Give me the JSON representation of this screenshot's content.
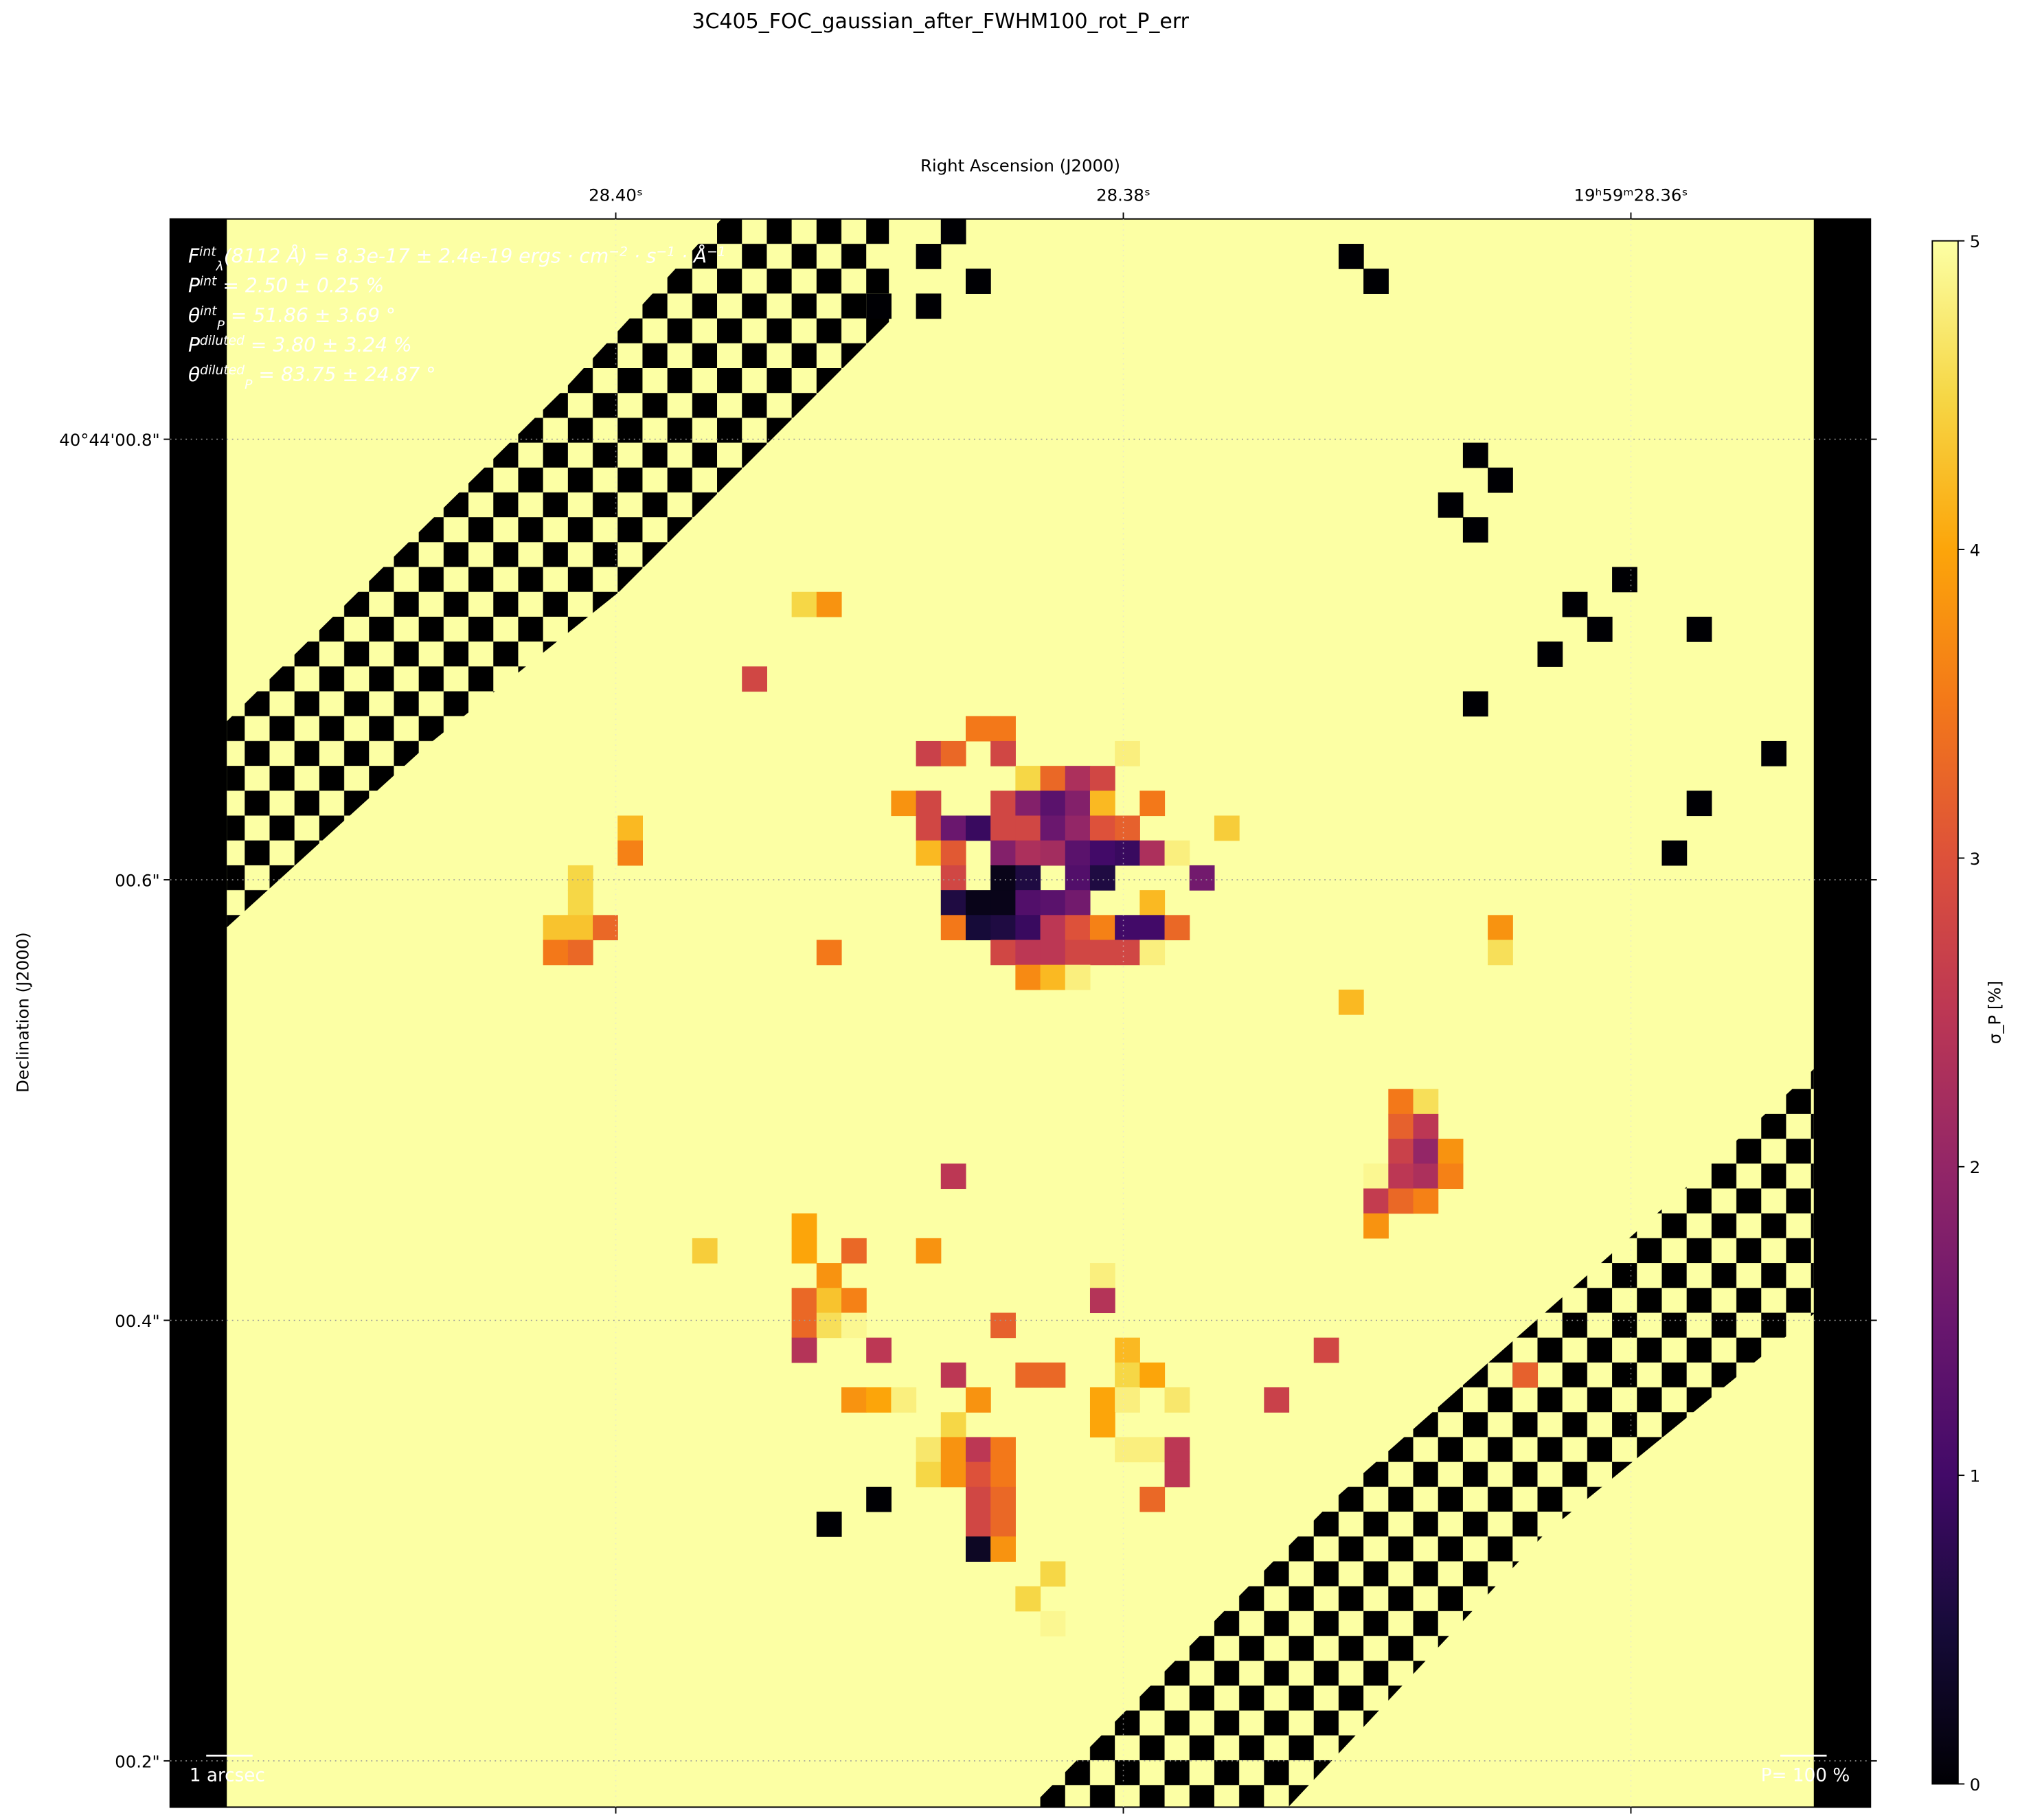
{
  "chart_data": {
    "type": "heatmap",
    "title": "3C405_FOC_gaussian_after_FWHM100_rot_P_err",
    "x_label": "Right Ascension (J2000)",
    "y_label": "Declination (J2000)",
    "xlim": [
      28.41756,
      28.35056
    ],
    "xticks": [
      {
        "value": 28.4,
        "label": "28.40ˢ"
      },
      {
        "value": 28.38,
        "label": "28.38ˢ"
      },
      {
        "value": 28.36,
        "label": "19ʰ59ᵐ28.36ˢ"
      }
    ],
    "ylim": [
      0.179,
      0.9
    ],
    "yticks": [
      {
        "value": 0.8,
        "label": "40°44'00.8\""
      },
      {
        "value": 0.6,
        "label": "00.6\""
      },
      {
        "value": 0.4,
        "label": "00.4\""
      },
      {
        "value": 0.2,
        "label": "00.2\""
      }
    ],
    "grid": true,
    "colormap": "inferno",
    "colorbar_label": "σ_P [%]",
    "clim": [
      0,
      5
    ],
    "cticks": [
      0,
      1,
      2,
      3,
      4,
      5
    ],
    "annotations": [
      [
        {
          "t": "F"
        },
        {
          "sup": "int"
        },
        {
          "sub": "λ"
        },
        {
          "t": "(8112 Å) = 8.3e-17 ± 2.4e-19 ergs · cm"
        },
        {
          "sup": "−2"
        },
        {
          "t": " · s"
        },
        {
          "sup": "−1"
        },
        {
          "t": " · Å"
        },
        {
          "sup": "−1"
        }
      ],
      [
        {
          "t": "P"
        },
        {
          "sup": "int"
        },
        {
          "t": " = 2.50 ± 0.25 %"
        }
      ],
      [
        {
          "t": "θ"
        },
        {
          "sup": "int"
        },
        {
          "sub": "P"
        },
        {
          "t": " = 51.86 ± 3.69 °"
        }
      ],
      [
        {
          "t": "P"
        },
        {
          "sup": "diluted"
        },
        {
          "t": " = 3.80 ± 3.24 %"
        }
      ],
      [
        {
          "t": "θ"
        },
        {
          "sup": "diluted"
        },
        {
          "sub": "P"
        },
        {
          "t": " = 83.75 ± 24.87 °"
        }
      ]
    ],
    "scalebar_label": "1 arcsec",
    "vector_scale_label": "P= 100 %",
    "cells": [
      [
        25,
        15,
        4.5
      ],
      [
        26,
        15,
        3.8
      ],
      [
        23,
        18,
        2.8
      ],
      [
        32,
        20,
        3.5
      ],
      [
        33,
        20,
        3.5
      ],
      [
        30,
        21,
        2.7
      ],
      [
        31,
        21,
        3.3
      ],
      [
        33,
        21,
        2.8
      ],
      [
        38,
        21,
        4.8
      ],
      [
        34,
        22,
        4.5
      ],
      [
        35,
        22,
        3.3
      ],
      [
        36,
        22,
        2.3
      ],
      [
        37,
        22,
        2.8
      ],
      [
        29,
        23,
        3.8
      ],
      [
        30,
        23,
        2.8
      ],
      [
        33,
        23,
        2.8
      ],
      [
        34,
        23,
        1.8
      ],
      [
        35,
        23,
        1.3
      ],
      [
        36,
        23,
        1.8
      ],
      [
        37,
        23,
        4.2
      ],
      [
        39,
        23,
        3.5
      ],
      [
        30,
        24,
        2.8
      ],
      [
        31,
        24,
        1.5
      ],
      [
        32,
        24,
        0.9
      ],
      [
        33,
        24,
        2.8
      ],
      [
        34,
        24,
        2.8
      ],
      [
        35,
        24,
        1.5
      ],
      [
        36,
        24,
        2.0
      ],
      [
        37,
        24,
        3.0
      ],
      [
        38,
        24,
        3.2
      ],
      [
        42,
        24,
        4.4
      ],
      [
        30,
        25,
        4.2
      ],
      [
        31,
        25,
        3.1
      ],
      [
        33,
        25,
        1.8
      ],
      [
        34,
        25,
        2.3
      ],
      [
        35,
        25,
        2.2
      ],
      [
        36,
        25,
        1.3
      ],
      [
        37,
        25,
        1.0
      ],
      [
        38,
        25,
        0.9
      ],
      [
        39,
        25,
        2.3
      ],
      [
        40,
        25,
        4.8
      ],
      [
        31,
        26,
        2.8
      ],
      [
        33,
        26,
        0.2
      ],
      [
        34,
        26,
        0.6
      ],
      [
        36,
        26,
        1.2
      ],
      [
        37,
        26,
        0.6
      ],
      [
        41,
        26,
        1.6
      ],
      [
        31,
        27,
        0.6
      ],
      [
        32,
        27,
        0.2
      ],
      [
        33,
        27,
        0.2
      ],
      [
        34,
        27,
        1.2
      ],
      [
        35,
        27,
        1.3
      ],
      [
        36,
        27,
        1.6
      ],
      [
        39,
        27,
        4.2
      ],
      [
        31,
        28,
        3.5
      ],
      [
        32,
        28,
        0.5
      ],
      [
        33,
        28,
        0.6
      ],
      [
        34,
        28,
        0.9
      ],
      [
        35,
        28,
        2.5
      ],
      [
        36,
        28,
        3.0
      ],
      [
        37,
        28,
        3.6
      ],
      [
        38,
        28,
        1.0
      ],
      [
        39,
        28,
        1.0
      ],
      [
        40,
        28,
        3.3
      ],
      [
        33,
        29,
        2.8
      ],
      [
        34,
        29,
        2.5
      ],
      [
        35,
        29,
        2.5
      ],
      [
        36,
        29,
        2.8
      ],
      [
        37,
        29,
        2.8
      ],
      [
        38,
        29,
        2.8
      ],
      [
        39,
        29,
        4.8
      ],
      [
        34,
        30,
        3.7
      ],
      [
        35,
        30,
        4.2
      ],
      [
        36,
        30,
        4.8
      ],
      [
        18,
        24,
        4.2
      ],
      [
        18,
        25,
        3.6
      ],
      [
        16,
        26,
        4.5
      ],
      [
        16,
        27,
        4.5
      ],
      [
        15,
        28,
        4.3
      ],
      [
        16,
        28,
        4.3
      ],
      [
        17,
        28,
        3.3
      ],
      [
        15,
        29,
        3.5
      ],
      [
        16,
        29,
        3.3
      ],
      [
        26,
        29,
        3.5
      ],
      [
        47,
        31,
        4.2
      ],
      [
        53,
        28,
        3.8
      ],
      [
        53,
        29,
        4.6
      ],
      [
        49,
        35,
        3.5
      ],
      [
        50,
        35,
        4.6
      ],
      [
        49,
        36,
        3.2
      ],
      [
        50,
        36,
        2.5
      ],
      [
        49,
        37,
        2.7
      ],
      [
        50,
        37,
        2.0
      ],
      [
        51,
        37,
        3.8
      ],
      [
        48,
        38,
        4.9
      ],
      [
        49,
        38,
        2.5
      ],
      [
        50,
        38,
        2.3
      ],
      [
        51,
        38,
        3.6
      ],
      [
        48,
        39,
        2.6
      ],
      [
        49,
        39,
        3.3
      ],
      [
        50,
        39,
        3.6
      ],
      [
        48,
        40,
        3.8
      ],
      [
        31,
        38,
        2.5
      ],
      [
        21,
        41,
        4.4
      ],
      [
        25,
        40,
        4.0
      ],
      [
        25,
        41,
        4.0
      ],
      [
        27,
        41,
        3.3
      ],
      [
        30,
        41,
        3.8
      ],
      [
        26,
        42,
        3.8
      ],
      [
        37,
        42,
        4.8
      ],
      [
        25,
        43,
        3.3
      ],
      [
        26,
        43,
        4.3
      ],
      [
        27,
        43,
        3.6
      ],
      [
        37,
        43,
        2.4
      ],
      [
        25,
        44,
        3.3
      ],
      [
        26,
        44,
        4.6
      ],
      [
        27,
        44,
        4.9
      ],
      [
        33,
        44,
        3.2
      ],
      [
        25,
        45,
        2.4
      ],
      [
        28,
        45,
        2.5
      ],
      [
        38,
        45,
        4.2
      ],
      [
        46,
        45,
        2.8
      ],
      [
        31,
        46,
        2.5
      ],
      [
        34,
        46,
        3.3
      ],
      [
        35,
        46,
        3.3
      ],
      [
        38,
        46,
        4.5
      ],
      [
        39,
        46,
        4.0
      ],
      [
        54,
        46,
        3.2
      ],
      [
        27,
        47,
        3.8
      ],
      [
        28,
        47,
        4.0
      ],
      [
        29,
        47,
        4.8
      ],
      [
        32,
        47,
        3.8
      ],
      [
        37,
        47,
        4.0
      ],
      [
        38,
        47,
        4.8
      ],
      [
        40,
        47,
        4.7
      ],
      [
        44,
        47,
        2.7
      ],
      [
        31,
        48,
        4.5
      ],
      [
        37,
        48,
        4.0
      ],
      [
        30,
        49,
        4.7
      ],
      [
        31,
        49,
        3.8
      ],
      [
        32,
        49,
        2.5
      ],
      [
        33,
        49,
        3.5
      ],
      [
        38,
        49,
        4.8
      ],
      [
        39,
        49,
        4.8
      ],
      [
        40,
        49,
        2.5
      ],
      [
        30,
        50,
        4.5
      ],
      [
        31,
        50,
        3.8
      ],
      [
        32,
        50,
        3.0
      ],
      [
        33,
        50,
        3.5
      ],
      [
        40,
        50,
        2.5
      ],
      [
        32,
        51,
        2.8
      ],
      [
        33,
        51,
        3.3
      ],
      [
        39,
        51,
        3.3
      ],
      [
        32,
        52,
        2.8
      ],
      [
        33,
        52,
        3.3
      ],
      [
        32,
        53,
        0.3
      ],
      [
        33,
        53,
        3.8
      ],
      [
        35,
        54,
        4.5
      ],
      [
        34,
        55,
        4.5
      ],
      [
        35,
        56,
        4.9
      ],
      [
        31,
        0,
        0
      ],
      [
        30,
        1,
        0
      ],
      [
        32,
        2,
        0
      ],
      [
        28,
        3,
        0
      ],
      [
        30,
        3,
        0
      ],
      [
        47,
        1,
        0
      ],
      [
        48,
        2,
        0
      ],
      [
        52,
        9,
        0
      ],
      [
        53,
        10,
        0
      ],
      [
        51,
        11,
        0
      ],
      [
        52,
        12,
        0
      ],
      [
        58,
        14,
        0
      ],
      [
        56,
        15,
        0
      ],
      [
        57,
        16,
        0
      ],
      [
        61,
        16,
        0
      ],
      [
        55,
        17,
        0
      ],
      [
        52,
        19,
        0
      ],
      [
        64,
        21,
        0
      ],
      [
        61,
        23,
        0
      ],
      [
        60,
        25,
        0
      ],
      [
        28,
        51,
        0
      ],
      [
        26,
        52,
        0
      ]
    ]
  }
}
